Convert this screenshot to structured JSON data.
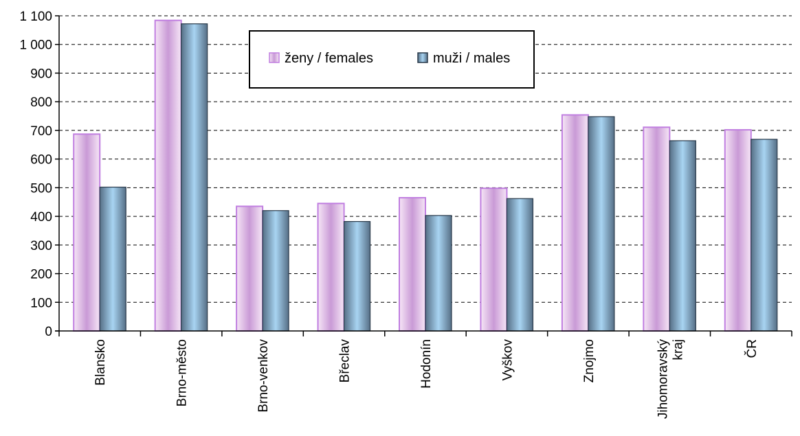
{
  "chart_data": {
    "type": "bar",
    "title": "",
    "xlabel": "",
    "ylabel": "",
    "ylim": [
      0,
      1100
    ],
    "yticks": [
      0,
      100,
      200,
      300,
      400,
      500,
      600,
      700,
      800,
      900,
      1000,
      1100
    ],
    "ytick_labels": [
      "0",
      "100",
      "200",
      "300",
      "400",
      "500",
      "600",
      "700",
      "800",
      "900",
      "1 000",
      "1 100"
    ],
    "grid": "dashed horizontal",
    "legend_position": "top-center",
    "categories": [
      [
        "Blansko"
      ],
      [
        "Brno-město"
      ],
      [
        "Brno-venkov"
      ],
      [
        "Břeclav"
      ],
      [
        "Hodonín"
      ],
      [
        "Vyškov"
      ],
      [
        "Znojmo"
      ],
      [
        "Jihomoravský",
        "kraj"
      ],
      [
        "ČR"
      ]
    ],
    "series": [
      {
        "name": "ženy / females",
        "color": "#d9a8e8",
        "values": [
          687,
          1084,
          435,
          445,
          465,
          498,
          754,
          711,
          702
        ]
      },
      {
        "name": "muži / males",
        "color": "#6a8aa8",
        "values": [
          502,
          1072,
          420,
          382,
          403,
          462,
          748,
          664,
          669
        ]
      }
    ]
  }
}
